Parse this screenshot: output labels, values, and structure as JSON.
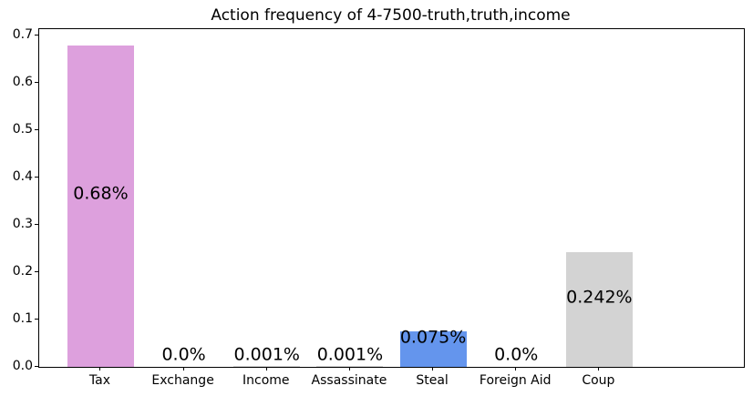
{
  "chart_data": {
    "type": "bar",
    "title": "Action frequency of 4-7500-truth,truth,income",
    "categories": [
      "Tax",
      "Exchange",
      "Income",
      "Assassinate",
      "Steal",
      "Foreign Aid",
      "Coup"
    ],
    "values": [
      0.68,
      0.0,
      0.001,
      0.001,
      0.075,
      0.0,
      0.242
    ],
    "bar_labels": [
      "0.68%",
      "0.0%",
      "0.001%",
      "0.001%",
      "0.075%",
      "0.0%",
      "0.242%"
    ],
    "bar_colors": [
      "#dda0dd",
      "#d3d3d3",
      "#d3d3d3",
      "#d3d3d3",
      "#6495ed",
      "#d3d3d3",
      "#d3d3d3"
    ],
    "xlabel": "",
    "ylabel": "",
    "ylim": [
      0,
      0.714
    ],
    "yticks": [
      "0.0",
      "0.1",
      "0.2",
      "0.3",
      "0.4",
      "0.5",
      "0.6",
      "0.7"
    ],
    "grid": false,
    "legend": null,
    "colors_meaning": {
      "plum": "#dda0dd",
      "cornflowerblue": "#6495ed",
      "lightgray": "#d3d3d3"
    }
  }
}
